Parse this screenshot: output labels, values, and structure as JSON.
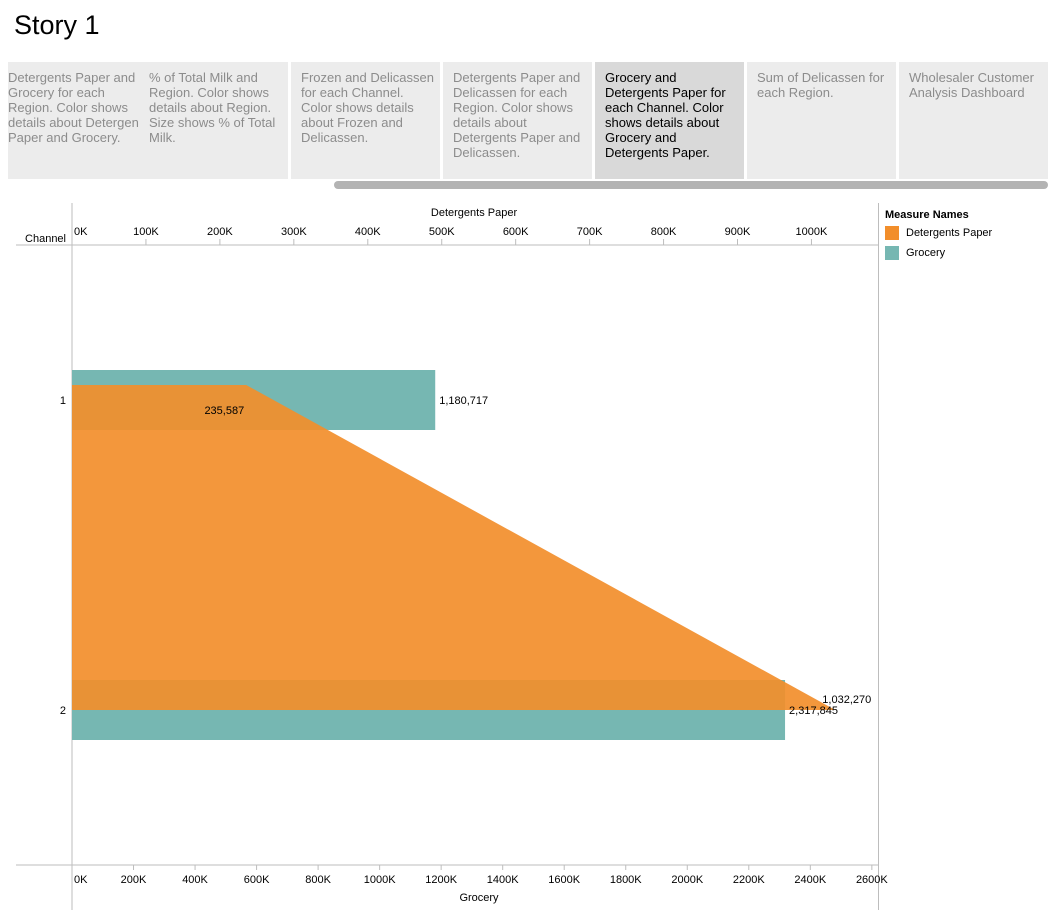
{
  "story": {
    "title": "Story 1"
  },
  "tabs": [
    {
      "label": "Detergents Paper and Grocery for each Region. Color shows details about Detergents Paper and Grocery.",
      "active": false
    },
    {
      "label": "% of Total Milk and Region. Color shows details about Region. Size shows % of Total Milk.",
      "active": false
    },
    {
      "label": "Frozen and Delicassen for each Channel. Color shows details about Frozen and Delicassen.",
      "active": false
    },
    {
      "label": "Detergents Paper and Delicassen for each Region. Color shows details about Detergents Paper and Delicassen.",
      "active": false
    },
    {
      "label": "Grocery and Detergents Paper for each Channel. Color shows details about Grocery and Detergents Paper.",
      "active": true
    },
    {
      "label": "Sum of Delicassen for each Region.",
      "active": false
    },
    {
      "label": "Wholesaler Customer Analysis Dashboard",
      "active": false
    }
  ],
  "legend": {
    "title": "Measure Names",
    "items": [
      {
        "label": "Detergents Paper",
        "color": "#f28e2b"
      },
      {
        "label": "Grocery",
        "color": "#76b7b2"
      }
    ]
  },
  "chart_data": {
    "type": "bar",
    "row_header": "Channel",
    "categories": [
      "1",
      "2"
    ],
    "top_axis": {
      "title": "Detergents Paper",
      "range": [
        0,
        1090000
      ],
      "ticks": [
        0,
        100000,
        200000,
        300000,
        400000,
        500000,
        600000,
        700000,
        800000,
        900000,
        1000000
      ],
      "tick_labels": [
        "0K",
        "100K",
        "200K",
        "300K",
        "400K",
        "500K",
        "600K",
        "700K",
        "800K",
        "900K",
        "1000K"
      ]
    },
    "bottom_axis": {
      "title": "Grocery",
      "range": [
        0,
        2620000
      ],
      "ticks": [
        0,
        200000,
        400000,
        600000,
        800000,
        1000000,
        1200000,
        1400000,
        1600000,
        1800000,
        2000000,
        2200000,
        2400000,
        2600000
      ],
      "tick_labels": [
        "0K",
        "200K",
        "400K",
        "600K",
        "800K",
        "1000K",
        "1200K",
        "1400K",
        "1600K",
        "1800K",
        "2000K",
        "2200K",
        "2400K",
        "2600K"
      ]
    },
    "series": [
      {
        "name": "Grocery",
        "axis": "bottom",
        "mark": "bar",
        "color": "#76b7b2",
        "values": [
          1180717,
          2317845
        ],
        "labels": [
          "1,180,717",
          "2,317,845"
        ]
      },
      {
        "name": "Detergents Paper",
        "axis": "top",
        "mark": "area",
        "color": "#f28e2b",
        "values": [
          235587,
          1032270
        ],
        "labels": [
          "235,587",
          "1,032,270"
        ]
      }
    ]
  }
}
